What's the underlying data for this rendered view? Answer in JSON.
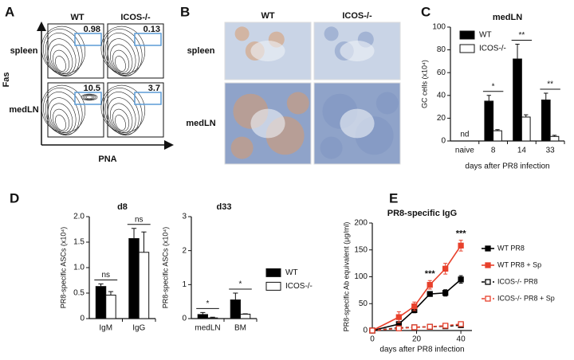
{
  "panels": {
    "A": {
      "letter": "A",
      "columns": [
        "WT",
        "ICOS-/-"
      ],
      "rows": [
        "spleen",
        "medLN"
      ],
      "y_axis": "Fas",
      "x_axis": "PNA",
      "gates": [
        [
          "0.98",
          "0.13"
        ],
        [
          "10.5",
          "3.7"
        ]
      ]
    },
    "B": {
      "letter": "B",
      "columns": [
        "WT",
        "ICOS-/-"
      ],
      "rows": [
        "spleen",
        "medLN"
      ]
    }
  },
  "chart_data": [
    {
      "type": "bar",
      "panel": "C",
      "title": "medLN",
      "ylabel": "GC cells (x10⁴)",
      "xlabel": "days after PR8 infection",
      "categories": [
        "naive",
        "8",
        "14",
        "33"
      ],
      "series": [
        {
          "name": "WT",
          "color": "#000000",
          "values": [
            null,
            35,
            72,
            36
          ],
          "errors": [
            null,
            5,
            13,
            6
          ]
        },
        {
          "name": "ICOS-/-",
          "color": "#ffffff",
          "values": [
            null,
            9,
            21,
            4
          ],
          "errors": [
            null,
            1,
            2,
            1
          ]
        }
      ],
      "annotations": [
        "nd",
        "*",
        "**",
        "**"
      ],
      "ylim": [
        0,
        100
      ],
      "yticks": [
        0,
        20,
        40,
        60,
        80,
        100
      ],
      "legend": "upper left"
    },
    {
      "type": "bar",
      "panel": "D",
      "title": "d8",
      "ylabel": "PR8-specific ASCs (x10⁴)",
      "categories": [
        "IgM",
        "IgG"
      ],
      "series": [
        {
          "name": "WT",
          "color": "#000000",
          "values": [
            0.63,
            1.57
          ],
          "errors": [
            0.05,
            0.2
          ]
        },
        {
          "name": "ICOS-/-",
          "color": "#ffffff",
          "values": [
            0.46,
            1.3
          ],
          "errors": [
            0.07,
            0.4
          ]
        }
      ],
      "annotations": [
        "ns",
        "ns"
      ],
      "ylim": [
        0,
        2
      ],
      "yticks": [
        0,
        0.5,
        {
          "value": 1,
          "label": "1.0"
        },
        1.5,
        {
          "value": 2,
          "label": "2.0"
        }
      ]
    },
    {
      "type": "bar",
      "title": "d33",
      "ylabel": "PR8-specific ASCs (x10⁴)",
      "categories": [
        "medLN",
        "BM"
      ],
      "series": [
        {
          "name": "WT",
          "color": "#000000",
          "values": [
            0.12,
            0.55
          ],
          "errors": [
            0.06,
            0.2
          ]
        },
        {
          "name": "ICOS-/-",
          "color": "#ffffff",
          "values": [
            0.02,
            0.13
          ],
          "errors": [
            0.02,
            0.01
          ]
        }
      ],
      "annotations": [
        "*",
        "*"
      ],
      "ylim": [
        0,
        3
      ],
      "yticks": [
        0,
        1,
        2,
        3
      ],
      "legend": "right"
    },
    {
      "type": "line",
      "panel": "E",
      "title": "PR8-specific IgG",
      "ylabel": "PR8-specific Ab equivalent (μg/ml)",
      "xlabel": "days after PR8 infection",
      "x": [
        0,
        12,
        19,
        26,
        33,
        40
      ],
      "series": [
        {
          "name": "WT PR8",
          "color": "#000000",
          "marker": "filled",
          "linestyle": "solid",
          "values": [
            0,
            12,
            38,
            68,
            70,
            95
          ],
          "errors": [
            0,
            4,
            5,
            4,
            6,
            7
          ]
        },
        {
          "name": "WT PR8 + Sp",
          "color": "#e8412c",
          "marker": "filled",
          "linestyle": "solid",
          "values": [
            0,
            25,
            45,
            85,
            115,
            158
          ],
          "errors": [
            0,
            10,
            8,
            8,
            10,
            10
          ]
        },
        {
          "name": "ICOS-/- PR8",
          "color": "#000000",
          "marker": "open",
          "linestyle": "dashed",
          "values": [
            0,
            5,
            6,
            7,
            8,
            10
          ],
          "errors": [
            0,
            2,
            2,
            2,
            2,
            2
          ]
        },
        {
          "name": "ICOS-/- PR8 + Sp",
          "color": "#e8412c",
          "marker": "open",
          "linestyle": "dashed",
          "values": [
            0,
            4,
            6,
            7,
            9,
            12
          ],
          "errors": [
            0,
            2,
            2,
            2,
            2,
            2
          ]
        }
      ],
      "annotations": [
        null,
        null,
        null,
        "***",
        null,
        "***"
      ],
      "xlim": [
        0,
        45
      ],
      "xticks": [
        0,
        20,
        40
      ],
      "ylim": [
        0,
        200
      ],
      "yticks": [
        0,
        50,
        100,
        150,
        200
      ],
      "legend": "right"
    }
  ]
}
